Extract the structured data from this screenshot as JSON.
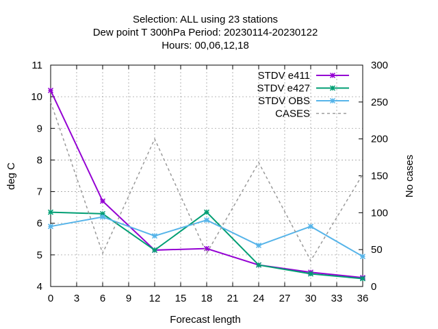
{
  "chart_data": {
    "type": "line",
    "title_lines": [
      "Selection: ALL using    23 stations",
      "Dew point T 300hPa   Period: 20230114-20230122",
      "Hours:  00,06,12,18"
    ],
    "xlabel": "Forecast length",
    "ylabel": "deg C",
    "y2label": "No cases",
    "xlim": [
      0,
      36
    ],
    "ylim": [
      4,
      11
    ],
    "y2lim": [
      0,
      300
    ],
    "xticks": [
      "0",
      "3",
      "6",
      "9",
      "12",
      "15",
      "18",
      "21",
      "24",
      "27",
      "30",
      "33",
      "36"
    ],
    "yticks": [
      "4",
      "5",
      "6",
      "7",
      "8",
      "9",
      "10",
      "11"
    ],
    "y2ticks": [
      "0",
      "50",
      "100",
      "150",
      "200",
      "250",
      "300"
    ],
    "grid": true,
    "legend_position": "top-right",
    "series": [
      {
        "name": "STDV e411",
        "axis": "y",
        "color": "#9400d3",
        "dash": false,
        "marker": "x",
        "x": [
          0,
          6,
          12,
          18,
          24,
          30,
          36
        ],
        "values": [
          10.2,
          6.7,
          5.15,
          5.2,
          4.68,
          4.45,
          4.28
        ]
      },
      {
        "name": "STDV e427",
        "axis": "y",
        "color": "#009e73",
        "dash": false,
        "marker": "x",
        "x": [
          0,
          6,
          12,
          18,
          24,
          30,
          36
        ],
        "values": [
          6.35,
          6.3,
          5.15,
          6.35,
          4.68,
          4.4,
          4.25
        ]
      },
      {
        "name": "STDV OBS",
        "axis": "y",
        "color": "#56b4e9",
        "dash": false,
        "marker": "x",
        "x": [
          0,
          6,
          12,
          18,
          24,
          30,
          36
        ],
        "values": [
          5.9,
          6.2,
          5.6,
          6.1,
          5.3,
          5.9,
          4.95
        ]
      },
      {
        "name": "CASES",
        "axis": "y2",
        "color": "#999999",
        "dash": true,
        "marker": "",
        "x": [
          0,
          6,
          12,
          18,
          24,
          30,
          36
        ],
        "values": [
          250,
          45,
          200,
          45,
          168,
          35,
          152
        ]
      }
    ]
  }
}
